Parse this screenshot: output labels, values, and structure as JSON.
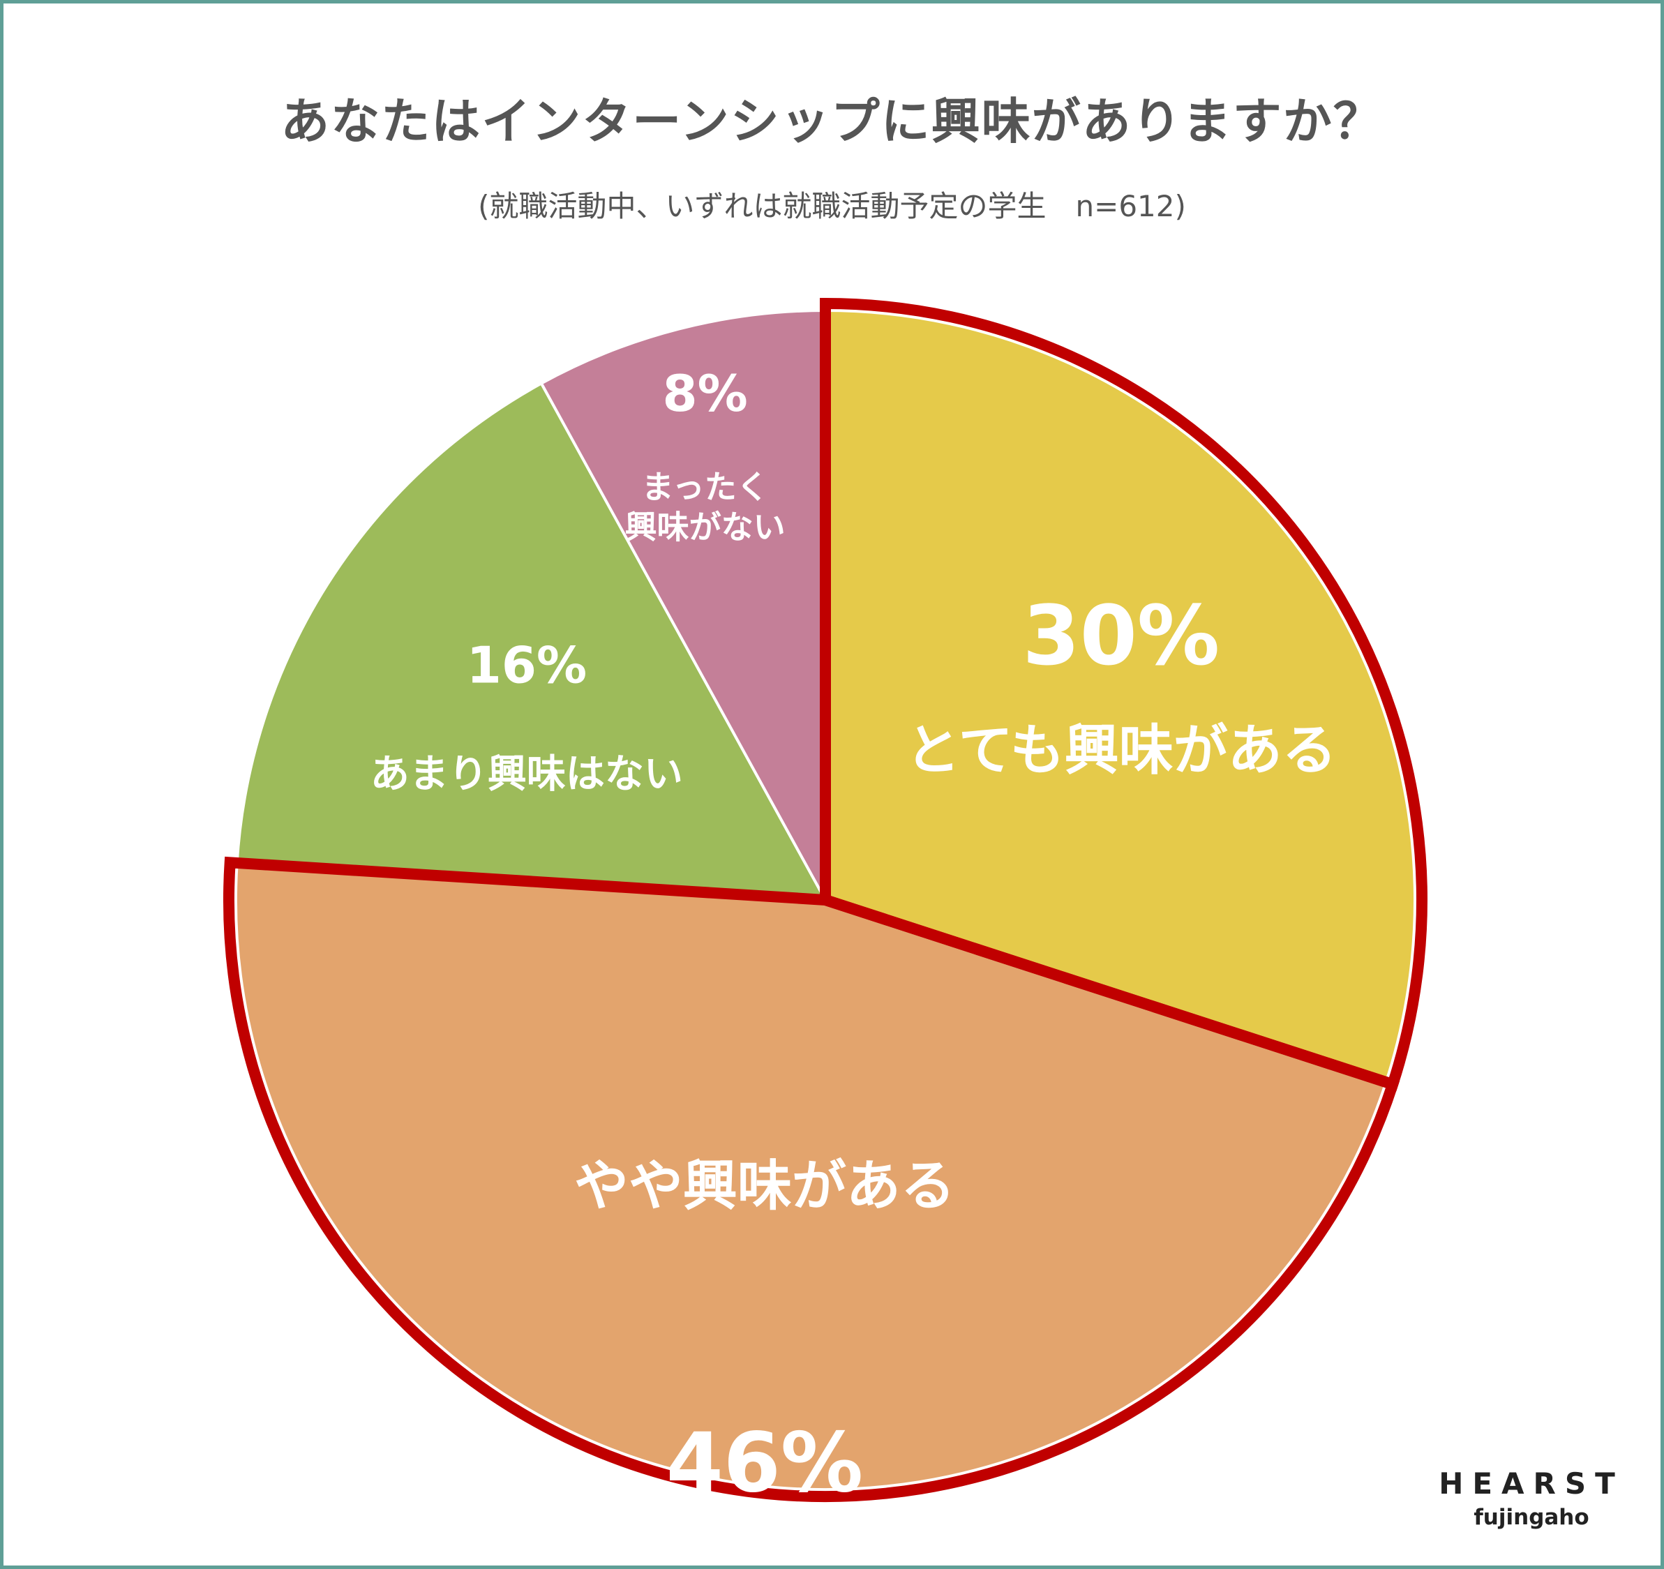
{
  "chart_data": {
    "type": "pie",
    "title": "あなたはインターンシップに興味がありますか？",
    "subtitle": "(就職活動中、いずれは就職活動予定の学生　n=612)",
    "start": "12 o'clock",
    "direction": "clockwise",
    "slices": [
      {
        "label": "とても興味がある",
        "value": 30,
        "value_label": "30%",
        "color": "#e5ca4a",
        "highlighted": true
      },
      {
        "label": "やや興味がある",
        "value": 46,
        "value_label": "46%",
        "color": "#e3a46d",
        "highlighted": true
      },
      {
        "label": "あまり興味はない",
        "value": 16,
        "value_label": "16%",
        "color": "#9dbb5a",
        "highlighted": false
      },
      {
        "label": "まったく\n興味がない",
        "value": 8,
        "value_label": "8%",
        "color": "#c47f98",
        "highlighted": false
      }
    ],
    "highlight_color": "#c00000"
  },
  "logo": {
    "main": "HEARST",
    "sub": "fujingaho"
  }
}
